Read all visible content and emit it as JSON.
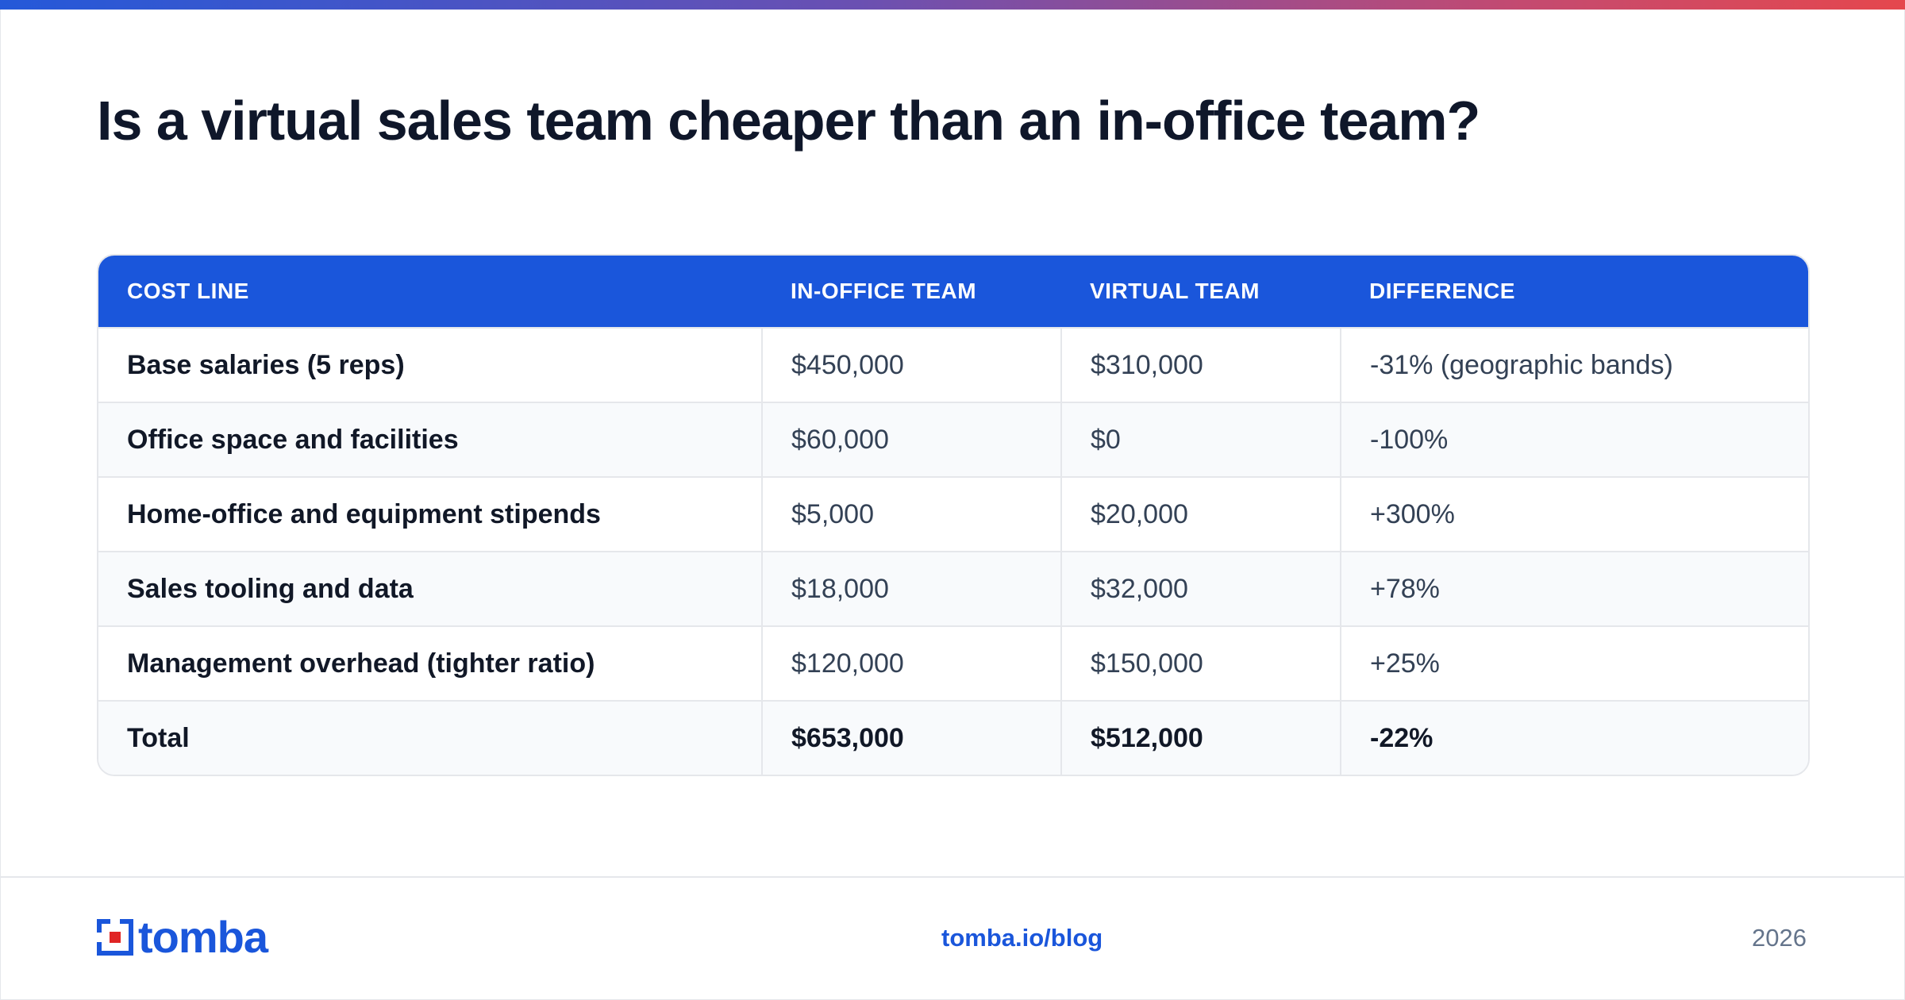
{
  "title": "Is a virtual sales team cheaper than an in-office team?",
  "colors": {
    "accent": "#1a56db",
    "gradient": [
      "#2459d9",
      "#6a50b2",
      "#c44a70",
      "#e5484d"
    ],
    "logo_red": "#e02424"
  },
  "table": {
    "headers": [
      "COST LINE",
      "IN-OFFICE TEAM",
      "VIRTUAL TEAM",
      "DIFFERENCE"
    ],
    "rows": [
      [
        "Base salaries (5 reps)",
        "$450,000",
        "$310,000",
        "-31% (geographic bands)"
      ],
      [
        "Office space and facilities",
        "$60,000",
        "$0",
        "-100%"
      ],
      [
        "Home-office and equipment stipends",
        "$5,000",
        "$20,000",
        "+300%"
      ],
      [
        "Sales tooling and data",
        "$18,000",
        "$32,000",
        "+78%"
      ],
      [
        "Management overhead (tighter ratio)",
        "$120,000",
        "$150,000",
        "+25%"
      ],
      [
        "Total",
        "$653,000",
        "$512,000",
        "-22%"
      ]
    ]
  },
  "footer": {
    "logo_text": "tomba",
    "logo_icon": "tomba-logo-icon",
    "link": "tomba.io/blog",
    "year": "2026"
  }
}
